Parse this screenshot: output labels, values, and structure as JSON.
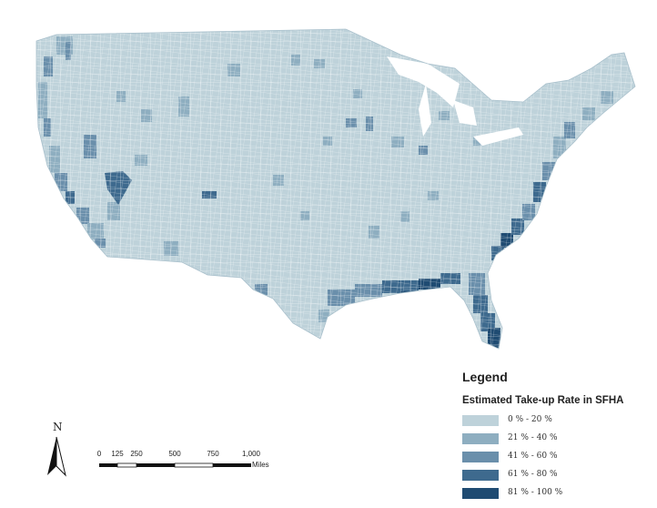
{
  "legend": {
    "title": "Legend",
    "subtitle": "Estimated Take-up Rate in SFHA",
    "classes": [
      {
        "label": "0 % - 20 %",
        "color": "#bed2da"
      },
      {
        "label": "21 % - 40 %",
        "color": "#8eaec0"
      },
      {
        "label": "41 % - 60 %",
        "color": "#6a8fab"
      },
      {
        "label": "61 % - 80 %",
        "color": "#3e6a8e"
      },
      {
        "label": "81 % - 100 %",
        "color": "#1f4b72"
      }
    ]
  },
  "north_arrow": {
    "label": "N"
  },
  "scale_bar": {
    "ticks": [
      "0",
      "125",
      "250",
      "500",
      "750",
      "1,000"
    ],
    "unit": "Miles"
  },
  "map": {
    "base_color": "#bed2da",
    "boundary_color": "#ffffff"
  }
}
